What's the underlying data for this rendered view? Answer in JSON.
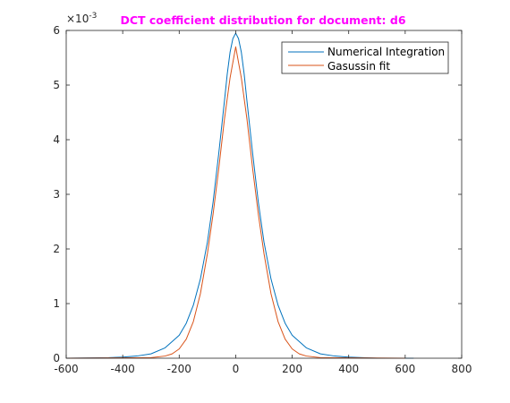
{
  "chart_data": {
    "type": "line",
    "title": "DCT coefficient distribution for document: d6",
    "title_color": "#ff00ff",
    "xlabel": "",
    "ylabel": "",
    "xlim": [
      -600,
      800
    ],
    "ylim": [
      0,
      0.006
    ],
    "x_ticks": [
      -600,
      -400,
      -200,
      0,
      200,
      400,
      600,
      800
    ],
    "y_ticks": [
      0,
      1,
      2,
      3,
      4,
      5,
      6
    ],
    "y_exponent": "×10",
    "y_exponent_power": "-3",
    "grid": false,
    "legend_position": "top-right",
    "series": [
      {
        "name": "Numerical Integration",
        "color": "#0072bd",
        "x": [
          -600,
          -450,
          -400,
          -350,
          -300,
          -250,
          -200,
          -175,
          -150,
          -125,
          -100,
          -80,
          -60,
          -40,
          -30,
          -20,
          -10,
          0,
          10,
          20,
          30,
          40,
          60,
          80,
          100,
          125,
          150,
          175,
          200,
          250,
          300,
          350,
          400,
          450,
          500,
          550,
          600,
          630
        ],
        "y": [
          0,
          1e-05,
          2e-05,
          4e-05,
          8e-05,
          0.00019,
          0.00042,
          0.00064,
          0.00097,
          0.00145,
          0.00213,
          0.00286,
          0.00375,
          0.0047,
          0.0052,
          0.0056,
          0.00585,
          0.00595,
          0.00585,
          0.0056,
          0.0052,
          0.0047,
          0.00375,
          0.00286,
          0.00213,
          0.00145,
          0.00097,
          0.00064,
          0.00042,
          0.00019,
          8e-05,
          4e-05,
          2e-05,
          1e-05,
          0,
          0,
          0,
          0
        ]
      },
      {
        "name": "Gasussin fit",
        "color": "#d95319",
        "x": [
          -600,
          -300,
          -250,
          -225,
          -200,
          -175,
          -150,
          -125,
          -100,
          -80,
          -60,
          -40,
          -20,
          0,
          20,
          40,
          60,
          80,
          100,
          125,
          150,
          175,
          200,
          225,
          250,
          300,
          600
        ],
        "y": [
          0,
          1e-05,
          4e-05,
          8e-05,
          0.00017,
          0.00035,
          0.00067,
          0.00118,
          0.00192,
          0.00264,
          0.00347,
          0.00437,
          0.00513,
          0.0057,
          0.00513,
          0.00437,
          0.00347,
          0.00264,
          0.00192,
          0.00118,
          0.00067,
          0.00035,
          0.00017,
          8e-05,
          4e-05,
          1e-05,
          0
        ]
      }
    ]
  }
}
